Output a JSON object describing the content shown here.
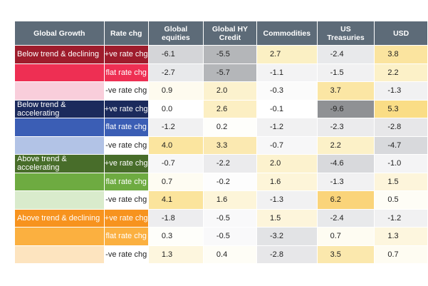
{
  "headers": [
    "Global Growth",
    "Rate chg",
    "Global\nequities",
    "Global HY\nCredit",
    "Commodities",
    "US\nTreasuries",
    "USD"
  ],
  "groups": [
    {
      "label": "Below trend & declining",
      "rows": [
        {
          "rate": "+ve rate chg",
          "values": [
            "-6.1",
            "-5.5",
            "2.7",
            "-2.4",
            "3.8"
          ],
          "growth_color": "#9e1c2c",
          "rate_color": "#9e1c2c",
          "cell_colors": [
            "#d4d5d8",
            "#b4b6b9",
            "#fbf0c4",
            "#e8e9eb",
            "#fbe49f"
          ]
        },
        {
          "rate": "flat rate chg",
          "values": [
            "-2.7",
            "-5.7",
            "-1.1",
            "-1.5",
            "2.2"
          ],
          "growth_color": "#ee2f53",
          "rate_color": "#ee2f53",
          "cell_colors": [
            "#e8e9eb",
            "#b4b6b9",
            "#f3f3f4",
            "#f1f1f2",
            "#fcf1c8"
          ]
        },
        {
          "rate": "-ve rate chg",
          "values": [
            "0.9",
            "2.0",
            "-0.3",
            "3.7",
            "-1.3"
          ],
          "growth_color": "#f9cedb",
          "rate_color": "#ffffff",
          "cell_colors": [
            "#fefbef",
            "#fcf2ce",
            "#fbfbfb",
            "#fbe6a4",
            "#f1f1f2"
          ]
        }
      ]
    },
    {
      "label": "Below trend & accelerating",
      "rows": [
        {
          "rate": "+ve rate chg",
          "values": [
            "0.0",
            "2.6",
            "-0.1",
            "-9.6",
            "5.3"
          ],
          "growth_color": "#1b2a5c",
          "rate_color": "#1b2a5c",
          "cell_colors": [
            "#ffffff",
            "#fcefc3",
            "#ffffff",
            "#8f9194",
            "#fadd86"
          ]
        },
        {
          "rate": "flat rate chg",
          "values": [
            "-1.2",
            "0.2",
            "-1.2",
            "-2.3",
            "-2.8"
          ],
          "growth_color": "#3b5eb5",
          "rate_color": "#3b5eb5",
          "cell_colors": [
            "#f1f1f2",
            "#fefefb",
            "#f1f1f2",
            "#ebebed",
            "#e7e7e9"
          ]
        },
        {
          "rate": "-ve rate chg",
          "values": [
            "4.0",
            "3.3",
            "-0.7",
            "2.2",
            "-4.7"
          ],
          "growth_color": "#b2c3e6",
          "rate_color": "#ffffff",
          "cell_colors": [
            "#fbe59f",
            "#fbe9b1",
            "#f7f7f8",
            "#fcf1c8",
            "#d8d9dc"
          ]
        }
      ]
    },
    {
      "label": "Above trend & accelerating",
      "rows": [
        {
          "rate": "+ve rate chg",
          "values": [
            "-0.7",
            "-2.2",
            "2.0",
            "-4.6",
            "-1.0"
          ],
          "growth_color": "#486d2a",
          "rate_color": "#486d2a",
          "cell_colors": [
            "#f7f7f8",
            "#ebebed",
            "#fcf2ce",
            "#d8d9dc",
            "#f4f4f5"
          ]
        },
        {
          "rate": "flat rate chg",
          "values": [
            "0.7",
            "-0.2",
            "1.6",
            "-1.3",
            "1.5"
          ],
          "growth_color": "#6eab41",
          "rate_color": "#6eab41",
          "cell_colors": [
            "#fefcf2",
            "#fdfdfd",
            "#fdf5d9",
            "#f1f1f2",
            "#fdf5db"
          ]
        },
        {
          "rate": "-ve rate chg",
          "values": [
            "4.1",
            "1.6",
            "-1.3",
            "6.2",
            "0.5"
          ],
          "growth_color": "#d9ebcc",
          "rate_color": "#ffffff",
          "cell_colors": [
            "#fbe49c",
            "#fdf5d9",
            "#f1f1f2",
            "#fad47a",
            "#fefdf6"
          ]
        }
      ]
    },
    {
      "label": "Above trend & declining",
      "rows": [
        {
          "rate": "+ve rate chg",
          "values": [
            "-1.8",
            "-0.5",
            "1.5",
            "-2.4",
            "-1.2"
          ],
          "growth_color": "#f7931e",
          "rate_color": "#f7931e",
          "cell_colors": [
            "#ededef",
            "#f9f9fa",
            "#fdf5db",
            "#e8e9eb",
            "#f1f1f2"
          ]
        },
        {
          "rate": "flat rate chg",
          "values": [
            "0.3",
            "-0.5",
            "-3.2",
            "0.7",
            "1.3"
          ],
          "growth_color": "#fbb040",
          "rate_color": "#fbb040",
          "cell_colors": [
            "#fefefa",
            "#f9f9fa",
            "#e2e3e5",
            "#fefcf2",
            "#fdf6de"
          ]
        },
        {
          "rate": "-ve rate chg",
          "values": [
            "1.3",
            "0.4",
            "-2.8",
            "3.5",
            "0.7"
          ],
          "growth_color": "#fde4bf",
          "rate_color": "#ffffff",
          "cell_colors": [
            "#fdf6de",
            "#fefdf6",
            "#e7e7e9",
            "#fbe8ad",
            "#fefcf2"
          ]
        }
      ]
    }
  ]
}
